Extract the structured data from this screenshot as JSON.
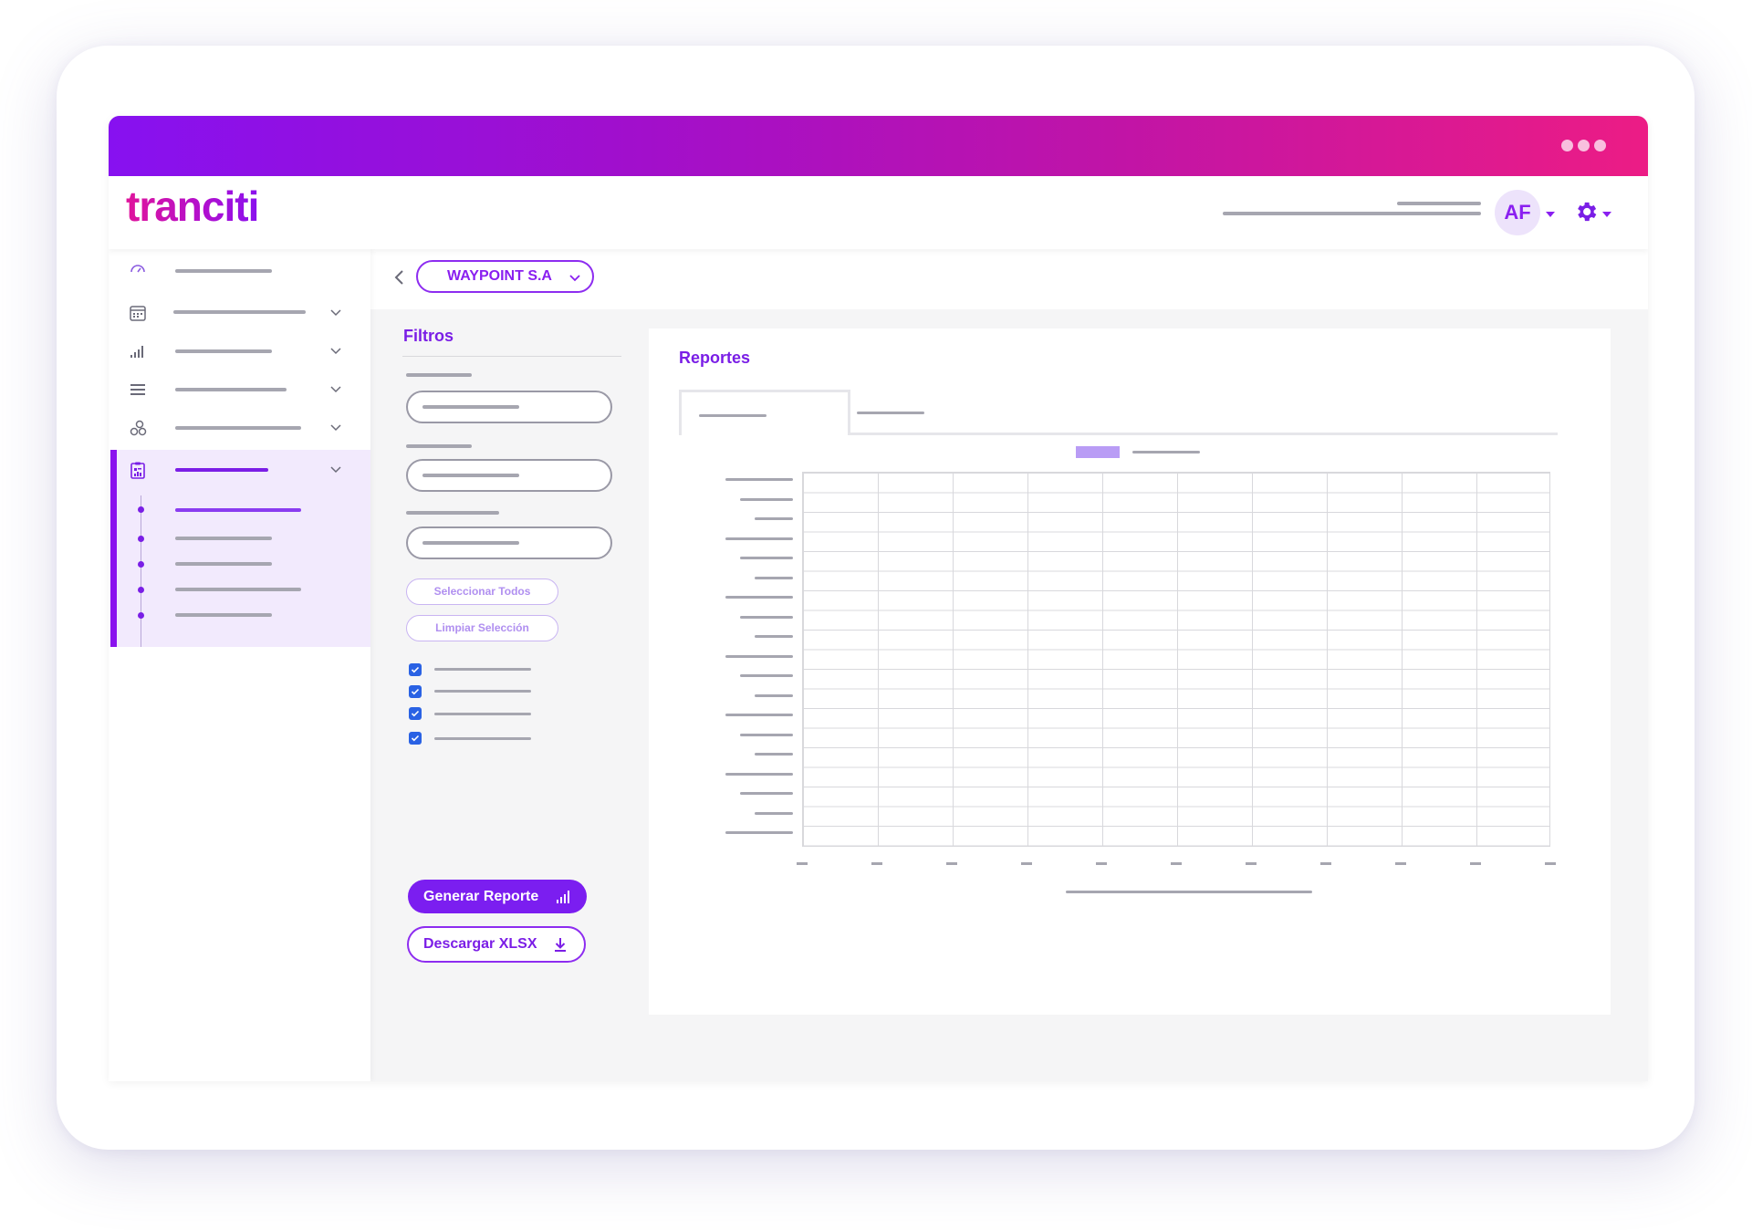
{
  "app": {
    "logo_text": "tranciti",
    "window_dots": 3,
    "gradient_colors": [
      "#8711f0",
      "#a20fcb",
      "#c014a7",
      "#ec1c85"
    ],
    "accent_color": "#7b1ef0"
  },
  "header": {
    "avatar_initials": "AF",
    "avatar_icon": "avatar",
    "settings_icon": "gear-icon"
  },
  "sidebar": {
    "items": [
      {
        "icon": "speedometer-icon",
        "has_submenu": false
      },
      {
        "icon": "calendar-icon",
        "has_submenu": true
      },
      {
        "icon": "signal-bars-icon",
        "has_submenu": true
      },
      {
        "icon": "list-icon",
        "has_submenu": true
      },
      {
        "icon": "circles-icon",
        "has_submenu": true
      },
      {
        "icon": "clipboard-report-icon",
        "has_submenu": true,
        "active": true,
        "subitems": 5
      }
    ]
  },
  "toolbar": {
    "company_select": "WAYPOINT S.A"
  },
  "filters": {
    "title": "Filtros",
    "select_all": "Seleccionar Todos",
    "clear_selection": "Limpiar Selección",
    "checkbox_count": 4,
    "generate_label": "Generar Reporte",
    "download_label": "Descargar XLSX"
  },
  "report": {
    "title": "Reportes",
    "tabs": 2,
    "active_tab": 0
  },
  "chart_data": {
    "type": "bar",
    "title": "",
    "legend_position": "top-center",
    "series_color": "#b99cf5",
    "grid": true,
    "orientation": "horizontal",
    "categories_count": 19,
    "x_ticks_count": 11,
    "values": []
  }
}
